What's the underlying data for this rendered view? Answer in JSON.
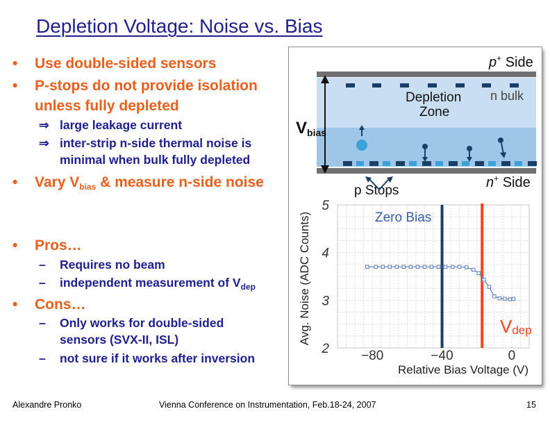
{
  "slide": {
    "title": "Depletion Voltage: Noise vs. Bias",
    "bullet_char": "•",
    "arrow_char": "⇒",
    "dash_char": "–",
    "bullets": [
      {
        "text": "Use double-sided sensors"
      },
      {
        "text": "P-stops do not provide isolation unless fully depleted"
      },
      {
        "text_a": "Vary V",
        "text_sub": "bias",
        "text_b": " & measure n-side noise"
      },
      {
        "text": "Pros…"
      },
      {
        "text": "Cons…"
      }
    ],
    "sub_points": {
      "pstops": [
        "large leakage current",
        "inter-strip n-side thermal noise is minimal when bulk fully depleted"
      ],
      "pros": [
        "Requires no beam",
        "independent measurement of V"
      ],
      "pros_sub": "dep",
      "cons": [
        "Only works for double-sided sensors (SVX-II, ISL)",
        "not sure if it works after inversion"
      ]
    },
    "footer": {
      "author": "Alexandre Pronko",
      "conference": "Vienna Conference on Instrumentation, Feb.18-24, 2007",
      "page": "15"
    },
    "colors": {
      "title": "#1f1f8f",
      "bullet": "#e8601c",
      "sub": "#1f1f8f"
    }
  },
  "figure": {
    "sensor": {
      "p_side": "p",
      "p_side_sup": "+",
      "p_side_word": " Side",
      "n_side": "n",
      "n_side_sup": "+",
      "n_side_word": " Side",
      "depletion_zone": [
        "Depletion",
        "Zone"
      ],
      "n_bulk": "n bulk",
      "vbias_main": "V",
      "vbias_sub": "bias",
      "p_stops": "p Stops"
    },
    "colors": {
      "depletion": "#c9dff1",
      "bulk": "#9ec6e6",
      "strip_dark": "#1a3f66",
      "strip_light": "#3aa2d6",
      "bar": "#707070",
      "marker": "#ee4422",
      "zero_bias_line": "#1b3d66",
      "series": "#5b7fc2",
      "label": "#333333",
      "zero_label": "#3a5ea8"
    },
    "chart_data": {
      "type": "line",
      "xlabel": "Relative Bias Voltage (V)",
      "ylabel": "Avg. Noise (ADC Counts)",
      "xlim": [
        -100,
        10
      ],
      "ylim": [
        2,
        5
      ],
      "xticks": [
        -80,
        -40,
        0
      ],
      "yticks": [
        2,
        3,
        4,
        5
      ],
      "series": [
        {
          "x": [
            -83,
            -78,
            -74,
            -70,
            -66,
            -62,
            -58,
            -54,
            -50,
            -46,
            -42,
            -38,
            -34,
            -30,
            -26,
            -22,
            -19,
            -16,
            -13,
            -10,
            -7,
            -4,
            -1,
            1
          ],
          "y": [
            3.7,
            3.7,
            3.7,
            3.7,
            3.7,
            3.7,
            3.7,
            3.7,
            3.7,
            3.7,
            3.7,
            3.7,
            3.7,
            3.7,
            3.69,
            3.64,
            3.57,
            3.43,
            3.28,
            3.08,
            3.04,
            3.03,
            3.02,
            3.03
          ]
        }
      ],
      "annotations": [
        {
          "text": "Zero Bias",
          "x": -40
        },
        {
          "text_main": "V",
          "text_sub": "dep",
          "x": -17
        }
      ]
    }
  }
}
